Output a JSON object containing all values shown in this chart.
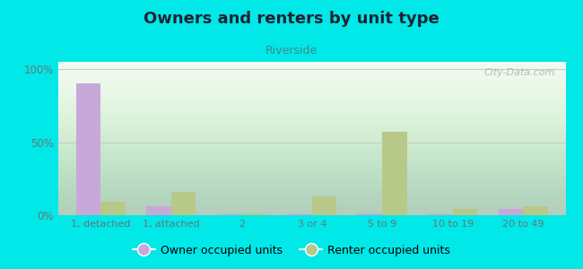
{
  "title": "Owners and renters by unit type",
  "subtitle": "Riverside",
  "categories": [
    "1, detached",
    "1, attached",
    "2",
    "3 or 4",
    "5 to 9",
    "10 to 19",
    "20 to 49"
  ],
  "owner_values": [
    90,
    6,
    0.5,
    0.5,
    1,
    0.5,
    4
  ],
  "renter_values": [
    9,
    16,
    1,
    13,
    57,
    4,
    6
  ],
  "owner_color": "#c8a8d8",
  "renter_color": "#b8c888",
  "background_color": "#00e8e8",
  "ylabel_ticks": [
    "0%",
    "50%",
    "100%"
  ],
  "ytick_values": [
    0,
    50,
    100
  ],
  "watermark": "City-Data.com",
  "bar_width": 0.35,
  "ylim": [
    0,
    105
  ],
  "title_color": "#222233",
  "subtitle_color": "#448888",
  "tick_color": "#667777",
  "grid_color": "#d0c8c8"
}
